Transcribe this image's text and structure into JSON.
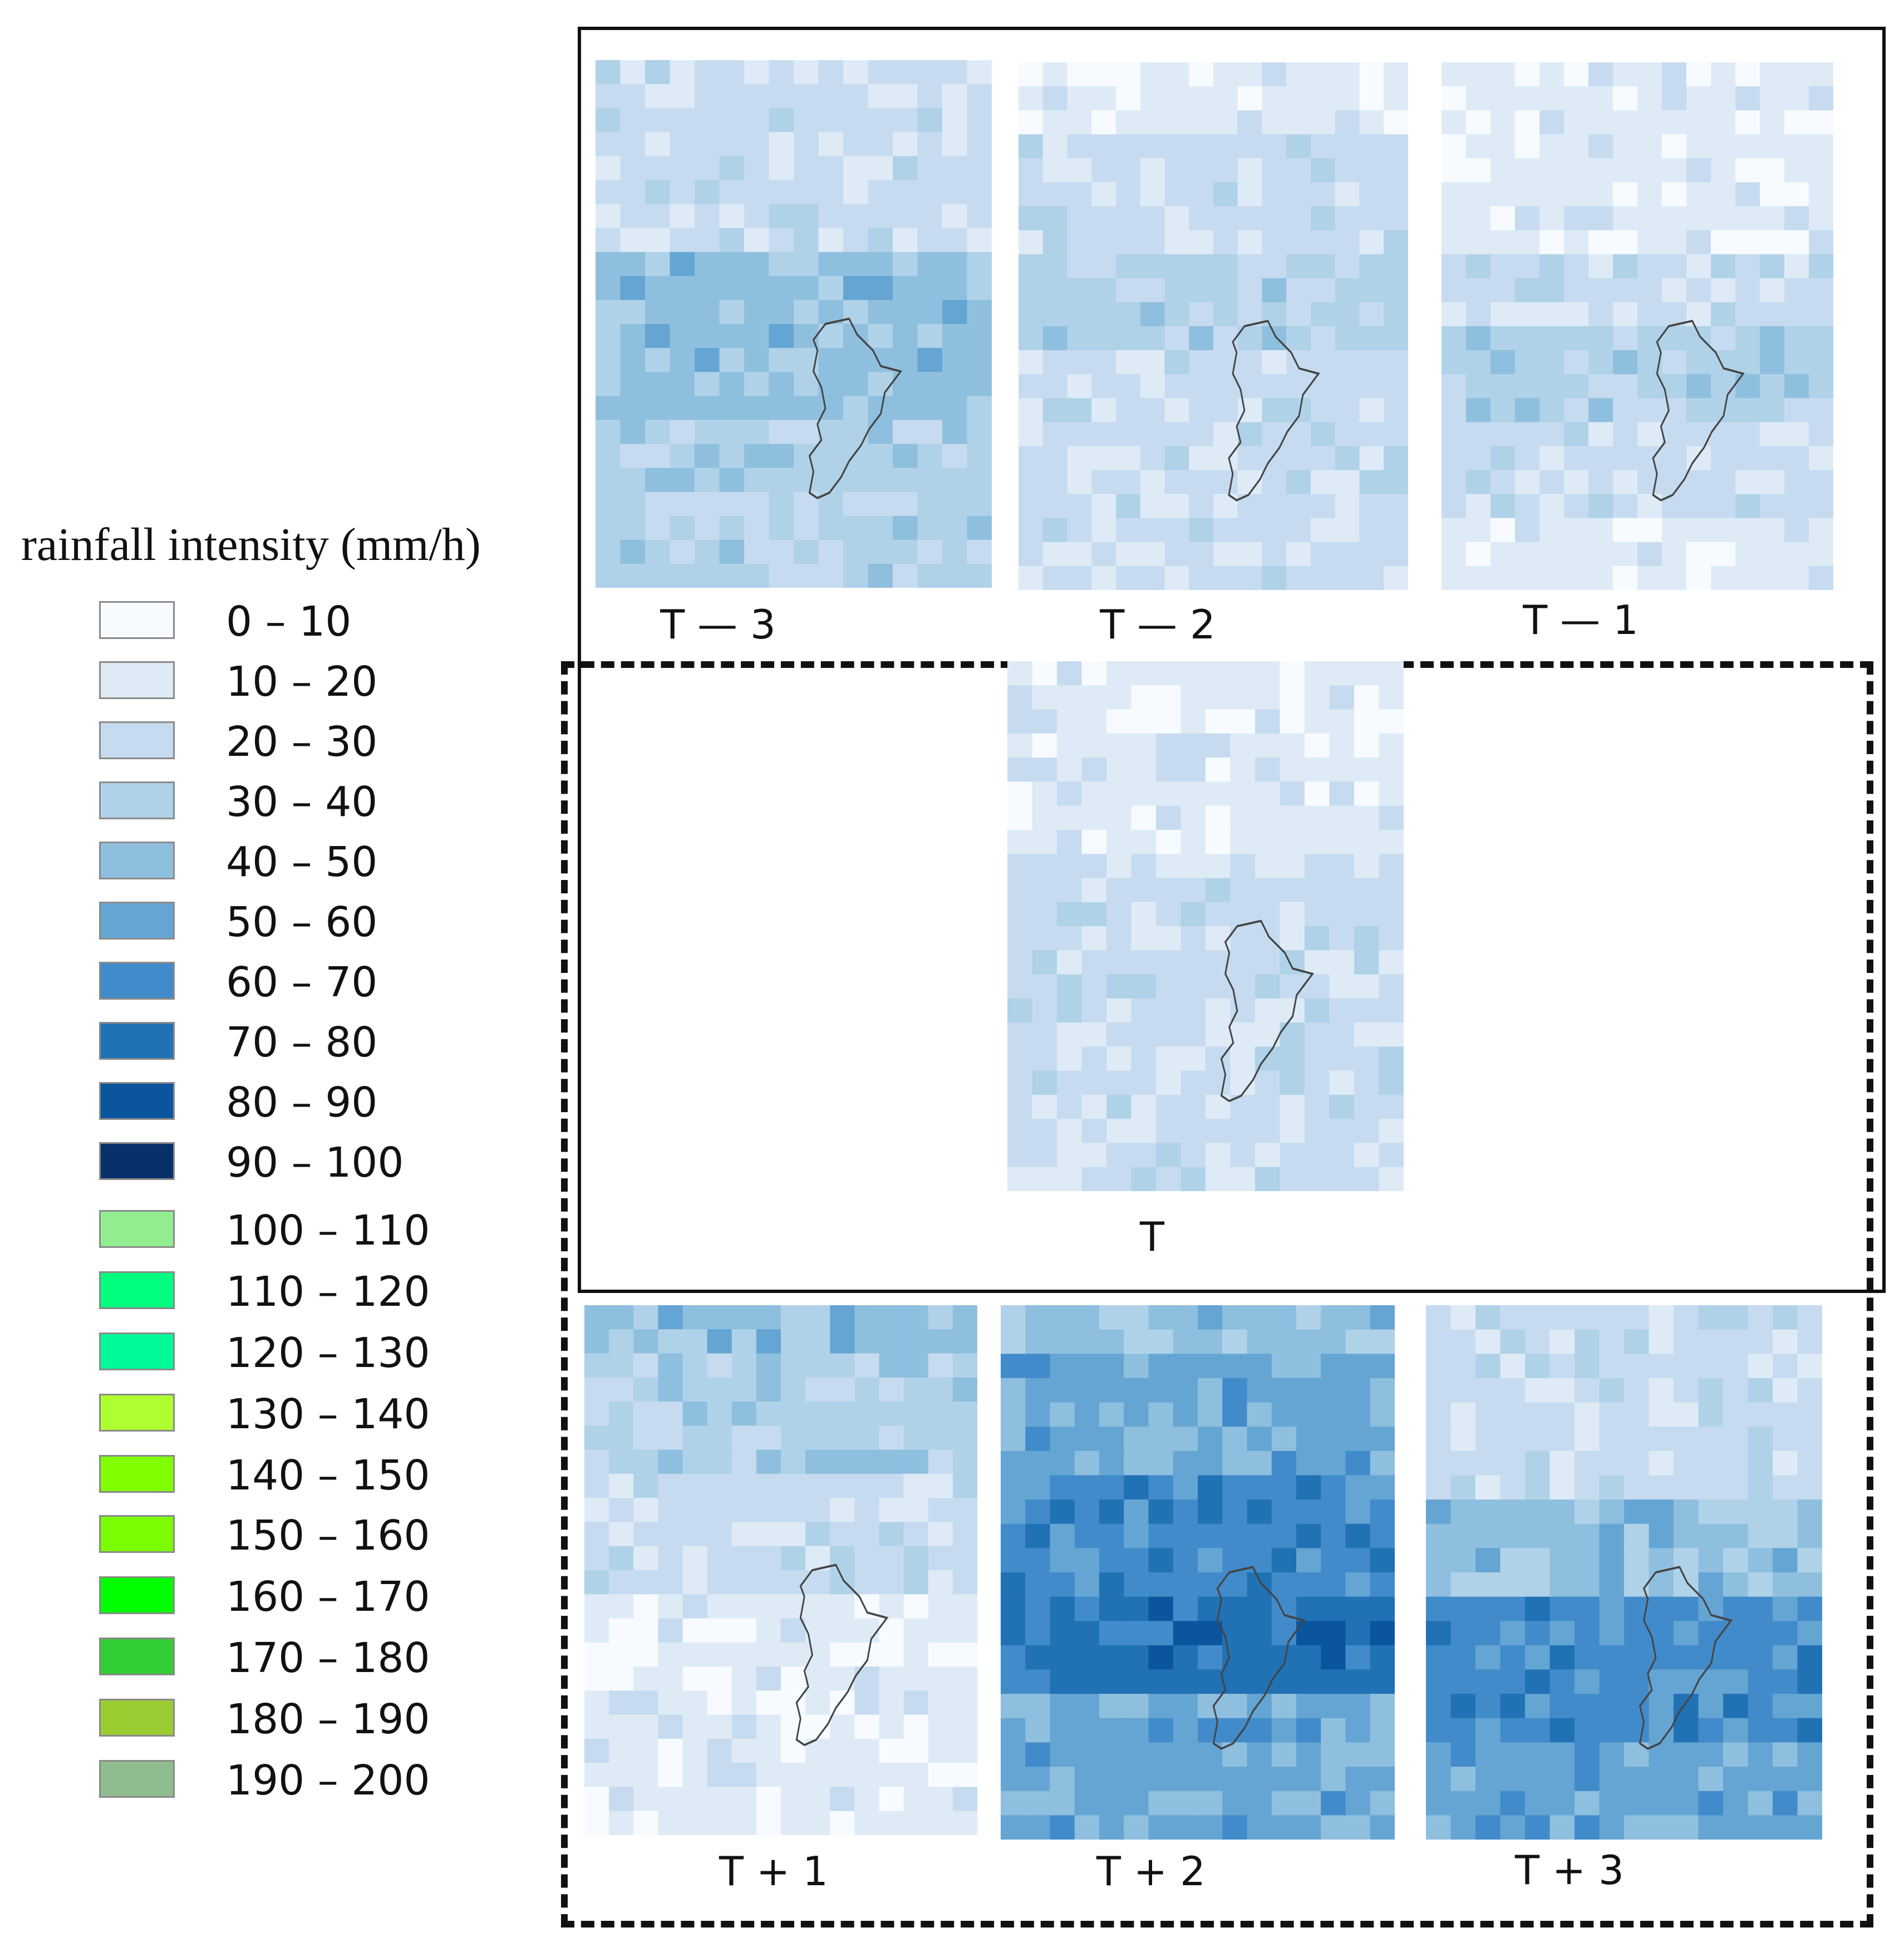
{
  "legend": {
    "title": "rainfall intensity (mm/h)",
    "items": [
      {
        "label": "0 – 10",
        "color": "#f7fbff"
      },
      {
        "label": "10 – 20",
        "color": "#deebf7"
      },
      {
        "label": "20 – 30",
        "color": "#c6dbef"
      },
      {
        "label": "30 – 40",
        "color": "#b0d2e8"
      },
      {
        "label": "40 – 50",
        "color": "#8fbfdf"
      },
      {
        "label": "50 – 60",
        "color": "#64a5d3"
      },
      {
        "label": "60 – 70",
        "color": "#428bca"
      },
      {
        "label": "70 – 80",
        "color": "#2171b5"
      },
      {
        "label": "80 – 90",
        "color": "#0b559f"
      },
      {
        "label": "90 – 100",
        "color": "#08306b"
      },
      {
        "label": "100 – 110",
        "color": "#90ee90"
      },
      {
        "label": "110 – 120",
        "color": "#00ff7f"
      },
      {
        "label": "120 – 130",
        "color": "#00fa9a"
      },
      {
        "label": "130 – 140",
        "color": "#adff2f"
      },
      {
        "label": "140 – 150",
        "color": "#7fff00"
      },
      {
        "label": "150 – 160",
        "color": "#7cfc00"
      },
      {
        "label": "160 – 170",
        "color": "#00ff00"
      },
      {
        "label": "170 – 180",
        "color": "#32cd32"
      },
      {
        "label": "180 – 190",
        "color": "#9acd32"
      },
      {
        "label": "190 – 200",
        "color": "#8fbc8f"
      }
    ]
  },
  "panels": [
    {
      "label": "T — 3",
      "base_class": 2,
      "bands": [
        {
          "from": 0.0,
          "to": 0.15,
          "cls": 2
        },
        {
          "from": 0.15,
          "to": 0.35,
          "cls": 2
        },
        {
          "from": 0.35,
          "to": 0.5,
          "cls": 4
        },
        {
          "from": 0.5,
          "to": 0.7,
          "cls": 4
        },
        {
          "from": 0.7,
          "to": 0.85,
          "cls": 3
        },
        {
          "from": 0.85,
          "to": 1.0,
          "cls": 3
        }
      ]
    },
    {
      "label": "T — 2",
      "base_class": 1,
      "bands": [
        {
          "from": 0.0,
          "to": 0.15,
          "cls": 1
        },
        {
          "from": 0.15,
          "to": 0.35,
          "cls": 2
        },
        {
          "from": 0.35,
          "to": 0.55,
          "cls": 3
        },
        {
          "from": 0.55,
          "to": 0.8,
          "cls": 2
        },
        {
          "from": 0.8,
          "to": 1.0,
          "cls": 2
        }
      ]
    },
    {
      "label": "T — 1",
      "base_class": 1,
      "bands": [
        {
          "from": 0.0,
          "to": 0.35,
          "cls": 1
        },
        {
          "from": 0.35,
          "to": 0.5,
          "cls": 2
        },
        {
          "from": 0.5,
          "to": 0.7,
          "cls": 3
        },
        {
          "from": 0.7,
          "to": 0.85,
          "cls": 2
        },
        {
          "from": 0.85,
          "to": 1.0,
          "cls": 1
        }
      ]
    },
    {
      "label": "T",
      "base_class": 2,
      "bands": [
        {
          "from": 0.0,
          "to": 0.35,
          "cls": 1
        },
        {
          "from": 0.35,
          "to": 0.55,
          "cls": 2
        },
        {
          "from": 0.55,
          "to": 0.75,
          "cls": 2
        },
        {
          "from": 0.75,
          "to": 1.0,
          "cls": 2
        }
      ]
    },
    {
      "label": "T + 1",
      "base_class": 1,
      "bands": [
        {
          "from": 0.0,
          "to": 0.1,
          "cls": 4
        },
        {
          "from": 0.1,
          "to": 0.3,
          "cls": 3
        },
        {
          "from": 0.3,
          "to": 0.55,
          "cls": 2
        },
        {
          "from": 0.55,
          "to": 0.75,
          "cls": 1
        },
        {
          "from": 0.75,
          "to": 1.0,
          "cls": 1
        }
      ]
    },
    {
      "label": "T + 2",
      "base_class": 5,
      "bands": [
        {
          "from": 0.0,
          "to": 0.1,
          "cls": 4
        },
        {
          "from": 0.1,
          "to": 0.3,
          "cls": 5
        },
        {
          "from": 0.3,
          "to": 0.55,
          "cls": 6
        },
        {
          "from": 0.55,
          "to": 0.75,
          "cls": 7
        },
        {
          "from": 0.75,
          "to": 1.0,
          "cls": 5
        }
      ]
    },
    {
      "label": "T + 3",
      "base_class": 2,
      "bands": [
        {
          "from": 0.0,
          "to": 0.2,
          "cls": 2
        },
        {
          "from": 0.2,
          "to": 0.38,
          "cls": 2
        },
        {
          "from": 0.38,
          "to": 0.55,
          "cls": 4
        },
        {
          "from": 0.55,
          "to": 0.8,
          "cls": 6
        },
        {
          "from": 0.8,
          "to": 1.0,
          "cls": 5
        }
      ]
    }
  ]
}
